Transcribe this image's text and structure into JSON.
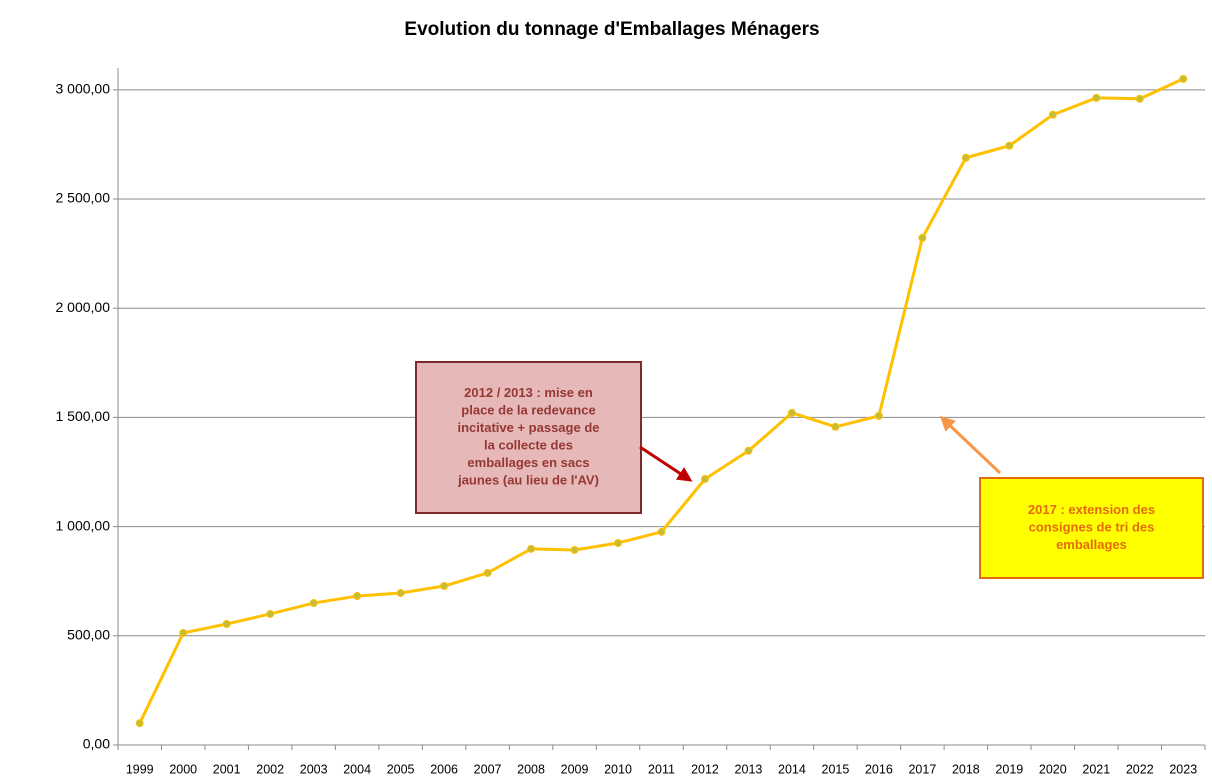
{
  "chart_data": {
    "type": "line",
    "title": "Evolution du tonnage d'Emballages Ménagers",
    "categories": [
      "1999",
      "2000",
      "2001",
      "2002",
      "2003",
      "2004",
      "2005",
      "2006",
      "2007",
      "2008",
      "2009",
      "2010",
      "2011",
      "2012",
      "2013",
      "2014",
      "2015",
      "2016",
      "2017",
      "2018",
      "2019",
      "2020",
      "2021",
      "2022",
      "2023"
    ],
    "values": [
      100,
      513,
      554,
      600,
      650,
      682,
      696,
      728,
      788,
      898,
      893,
      925,
      976,
      1218,
      1347,
      1521,
      1457,
      1507,
      2322,
      2689,
      2744,
      2886,
      2963,
      2959,
      3050
    ],
    "color": "#ffc000",
    "marker_color": "#c4bd3a",
    "ylim": [
      0,
      3100
    ],
    "yticks": [
      {
        "value": 0,
        "label": "0,00"
      },
      {
        "value": 500,
        "label": "500,00"
      },
      {
        "value": 1000,
        "label": "1 000,00"
      },
      {
        "value": 1500,
        "label": "1 500,00"
      },
      {
        "value": 2000,
        "label": "2 000,00"
      },
      {
        "value": 2500,
        "label": "2 500,00"
      },
      {
        "value": 3000,
        "label": "3 000,00"
      }
    ],
    "grid": true,
    "annotations": [
      {
        "lines": [
          "2012 / 2013 : mise en",
          "place de la redevance",
          "incitative + passage de",
          "la collecte des",
          "emballages en sacs",
          "jaunes (au lieu de l'AV)"
        ],
        "fill": "#e6b8b7",
        "border": "#7b2c2c",
        "text_color": "#953735",
        "arrow_color": "#c00000"
      },
      {
        "lines": [
          "2017 : extension des",
          "consignes de tri des",
          "emballages"
        ],
        "fill": "#ffff00",
        "border": "#e46c0a",
        "text_color": "#e46c0a",
        "arrow_color": "#f79646"
      }
    ]
  }
}
